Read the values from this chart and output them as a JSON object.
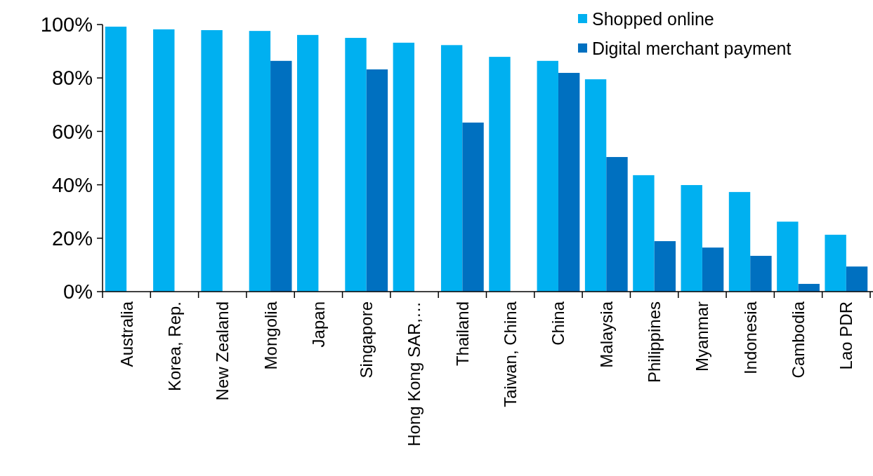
{
  "chart_data": {
    "type": "bar",
    "categories": [
      "Australia",
      "Korea, Rep.",
      "New Zealand",
      "Mongolia",
      "Japan",
      "Singapore",
      "Hong Kong SAR,…",
      "Thailand",
      "Taiwan, China",
      "China",
      "Malaysia",
      "Philippines",
      "Myanmar",
      "Indonesia",
      "Cambodia",
      "Lao PDR"
    ],
    "series": [
      {
        "name": "Shopped online",
        "color": "#00b0f0",
        "values": [
          99.2,
          98.2,
          97.9,
          97.6,
          96.1,
          95,
          93.2,
          92.3,
          87.9,
          86.4,
          79.5,
          43.6,
          39.9,
          37.3,
          26.2,
          21.3
        ]
      },
      {
        "name": "Digital merchant payment",
        "color": "#0070c0",
        "values": [
          null,
          null,
          null,
          86.4,
          null,
          83.2,
          null,
          63.3,
          null,
          81.9,
          50.4,
          18.9,
          16.5,
          13.4,
          2.9,
          9.4
        ]
      }
    ],
    "ylim": [
      0,
      100
    ],
    "yticks": [
      {
        "value": 0,
        "label": "0%"
      },
      {
        "value": 20,
        "label": "20%"
      },
      {
        "value": 40,
        "label": "40%"
      },
      {
        "value": 60,
        "label": "60%"
      },
      {
        "value": 80,
        "label": "80%"
      },
      {
        "value": 100,
        "label": "100%"
      }
    ],
    "grid": false,
    "legend": "top right"
  }
}
